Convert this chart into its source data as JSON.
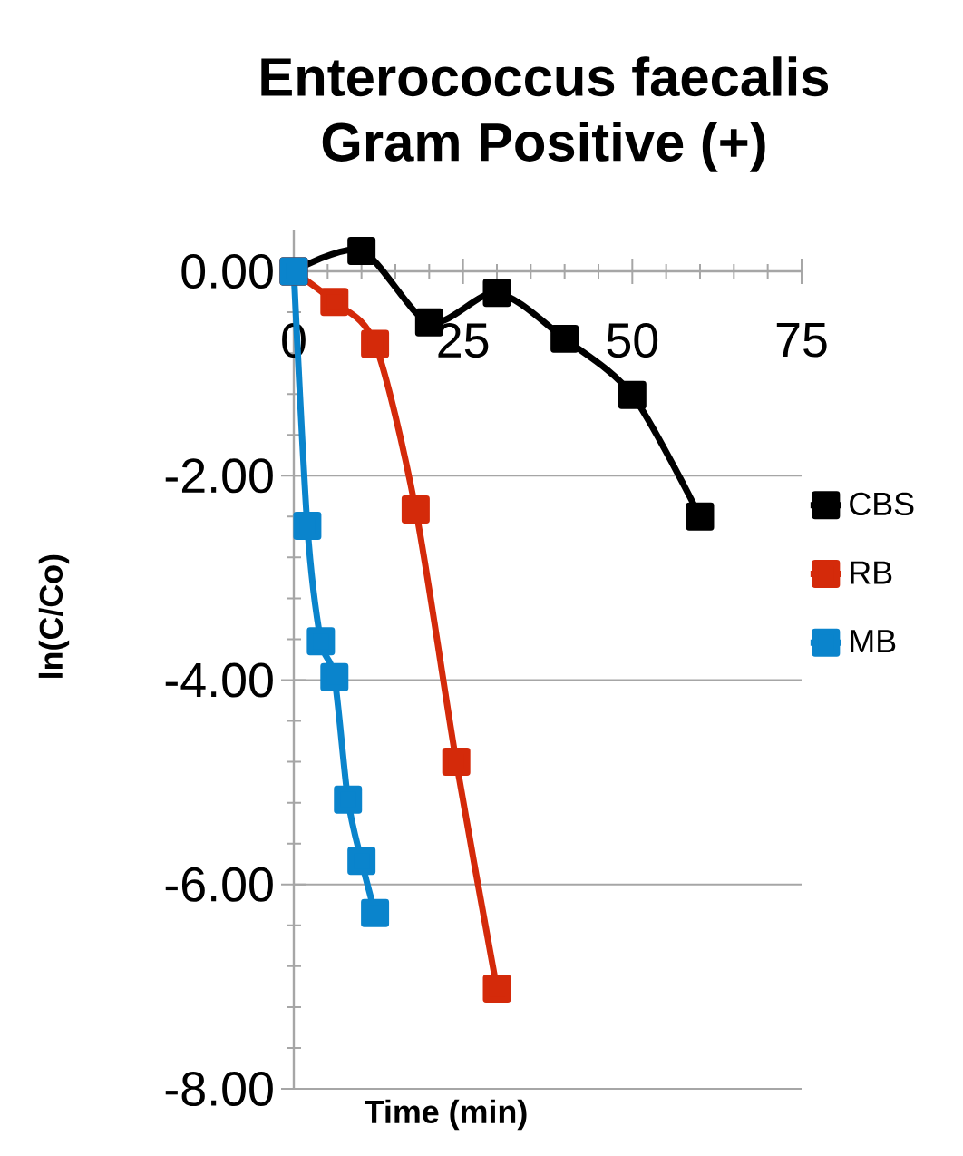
{
  "chart_data": {
    "type": "line",
    "title": "Enterococcus faecalis\nGram Positive (+)",
    "xlabel": "Time (min)",
    "ylabel": "ln(C/Co)",
    "xlim": [
      0,
      75
    ],
    "xticks": [
      0,
      25,
      50,
      75
    ],
    "ylim": [
      -8,
      0.4
    ],
    "yticks": [
      {
        "value": 0,
        "label": "0.00"
      },
      {
        "value": -2,
        "label": "-2.00"
      },
      {
        "value": -4,
        "label": "-4.00"
      },
      {
        "value": -6,
        "label": "-6.00"
      },
      {
        "value": -8,
        "label": "-8.00"
      }
    ],
    "grid": "y",
    "legend": "right",
    "marker": "square",
    "line_style": "solid",
    "series": [
      {
        "name": "CBS",
        "color": "#000000",
        "x": [
          0,
          10,
          20,
          30,
          40,
          50,
          60
        ],
        "values": [
          0,
          0.2,
          -0.5,
          -0.21,
          -0.66,
          -1.21,
          -2.4
        ]
      },
      {
        "name": "RB",
        "color": "#d42a0a",
        "x": [
          0,
          6,
          12,
          18,
          24,
          30
        ],
        "values": [
          0,
          -0.3,
          -0.71,
          -2.33,
          -4.8,
          -7.02
        ]
      },
      {
        "name": "MB",
        "color": "#0a84cc",
        "x": [
          0,
          2,
          4,
          6,
          8,
          10,
          12
        ],
        "values": [
          0,
          -2.49,
          -3.62,
          -3.97,
          -5.17,
          -5.77,
          -6.28
        ]
      }
    ]
  }
}
